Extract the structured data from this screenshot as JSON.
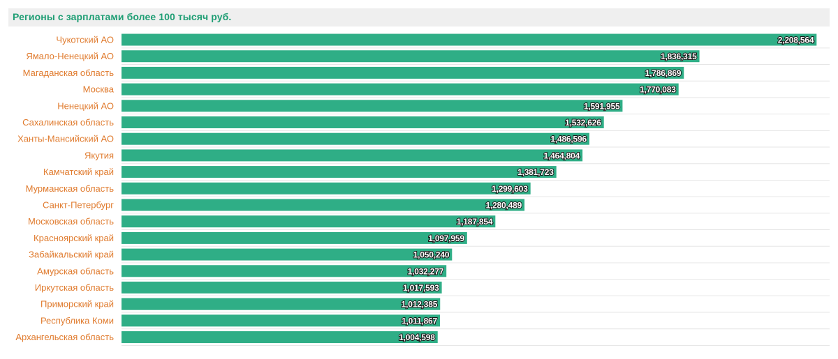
{
  "header": {
    "title": "Регионы с зарплатами более 100 тысяч руб."
  },
  "colors": {
    "bar": "#2fae86",
    "category_label": "#e07b2e",
    "title": "#1f9e74",
    "gridline": "#e6e6e6"
  },
  "chart_data": {
    "type": "bar",
    "orientation": "horizontal",
    "title": "Регионы с зарплатами более 100 тысяч руб.",
    "xlabel": "",
    "ylabel": "",
    "xlim": [
      0,
      2250000
    ],
    "grid": true,
    "legend": "none",
    "categories": [
      "Чукотский АО",
      "Ямало-Ненецкий АО",
      "Магаданская область",
      "Москва",
      "Ненецкий АО",
      "Сахалинская область",
      "Ханты-Мансийский АО",
      "Якутия",
      "Камчатский край",
      "Мурманская область",
      "Санкт-Петербург",
      "Московская область",
      "Красноярский край",
      "Забайкальский край",
      "Амурская область",
      "Иркутская область",
      "Приморский край",
      "Республика Коми",
      "Архангельская область"
    ],
    "values": [
      2208564,
      1836315,
      1786869,
      1770083,
      1591955,
      1532626,
      1486596,
      1464804,
      1381723,
      1299603,
      1280489,
      1187854,
      1097959,
      1050240,
      1032277,
      1017593,
      1012385,
      1011867,
      1004598
    ],
    "value_labels": [
      "2,208,564",
      "1,836,315",
      "1,786,869",
      "1,770,083",
      "1,591,955",
      "1,532,626",
      "1,486,596",
      "1,464,804",
      "1,381,723",
      "1,299,603",
      "1,280,489",
      "1,187,854",
      "1,097,959",
      "1,050,240",
      "1,032,277",
      "1,017,593",
      "1,012,385",
      "1,011,867",
      "1,004,598"
    ]
  }
}
